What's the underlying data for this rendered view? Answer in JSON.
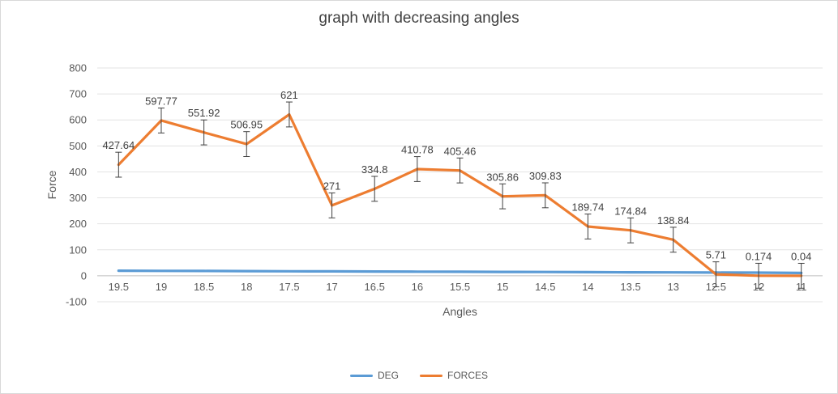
{
  "chart_data": {
    "type": "line",
    "title": "graph with decreasing angles",
    "xlabel": "Angles",
    "ylabel": "Force",
    "ylim": [
      -100,
      800
    ],
    "yticks": [
      -100,
      0,
      100,
      200,
      300,
      400,
      500,
      600,
      700,
      800
    ],
    "categories": [
      "19.5",
      "19",
      "18.5",
      "18",
      "17.5",
      "17",
      "16.5",
      "16",
      "15.5",
      "15",
      "14.5",
      "14",
      "13.5",
      "13",
      "12.5",
      "12",
      "11"
    ],
    "error": 48,
    "series": [
      {
        "name": "DEG",
        "color": "#5b9bd5",
        "values": [
          19.5,
          19,
          18.5,
          18,
          17.5,
          17,
          16.5,
          16,
          15.5,
          15,
          14.5,
          14,
          13.5,
          13,
          12.5,
          12,
          11
        ]
      },
      {
        "name": "FORCES",
        "color": "#ed7d31",
        "values": [
          427.64,
          597.77,
          551.92,
          506.95,
          621,
          271,
          334.8,
          410.78,
          405.46,
          305.86,
          309.83,
          189.74,
          174.84,
          138.84,
          5.71,
          0.174,
          0.04
        ],
        "labels": [
          "427.64",
          "597.77",
          "551.92",
          "506.95",
          "621",
          "271",
          "334.8",
          "410.78",
          "405.46",
          "305.86",
          "309.83",
          "189.74",
          "174.84",
          "138.84",
          "5.71",
          "0.174",
          "0.04"
        ]
      }
    ],
    "legend_position": "bottom",
    "grid": true
  }
}
